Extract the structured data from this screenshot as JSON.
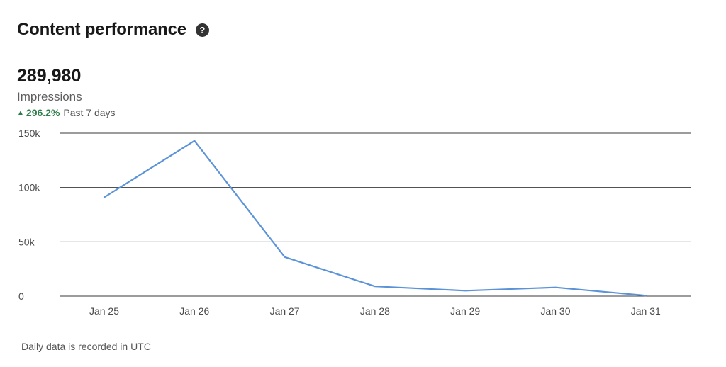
{
  "header": {
    "title": "Content performance",
    "help_icon": "question-circle-icon",
    "help_glyph": "?"
  },
  "metric": {
    "value": "289,980",
    "label": "Impressions",
    "change_percent": "296.2%",
    "change_period": "Past 7 days",
    "change_direction": "up",
    "change_arrow": "▲",
    "change_color": "#2e7d4a"
  },
  "chart_data": {
    "type": "line",
    "categories": [
      "Jan 25",
      "Jan 26",
      "Jan 27",
      "Jan 28",
      "Jan 29",
      "Jan 30",
      "Jan 31"
    ],
    "series": [
      {
        "values": [
          91000,
          143000,
          36000,
          9000,
          5000,
          8000,
          500
        ],
        "color": "#5b93d9"
      }
    ],
    "y_ticks": [
      0,
      50000,
      100000,
      150000
    ],
    "y_tick_labels": [
      "0",
      "50k",
      "100k",
      "150k"
    ],
    "ylim": [
      0,
      150000
    ],
    "grid": true,
    "title": "",
    "xlabel": "",
    "ylabel": ""
  },
  "footnote": "Daily data is recorded in UTC"
}
